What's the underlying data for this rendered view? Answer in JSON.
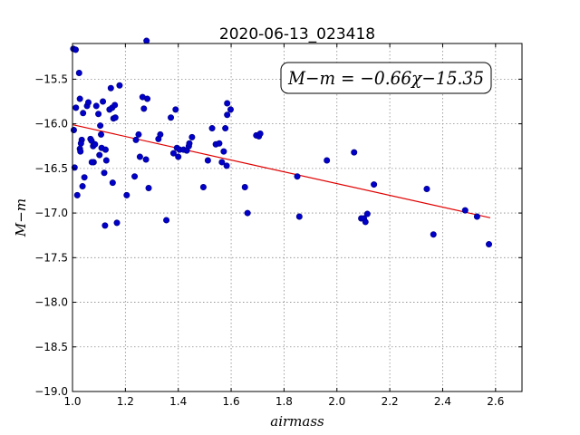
{
  "chart_data": {
    "type": "scatter",
    "title": "2020-06-13_023418",
    "xlabel": "airmass",
    "ylabel": "M−m",
    "xlim": [
      1.0,
      2.7
    ],
    "ylim": [
      -19.0,
      -15.1
    ],
    "y_inverted": true,
    "grid": true,
    "x_ticks": [
      1.0,
      1.2,
      1.4,
      1.6,
      1.8,
      2.0,
      2.2,
      2.4,
      2.6
    ],
    "x_tick_labels": [
      "1.0",
      "1.2",
      "1.4",
      "1.6",
      "1.8",
      "2.0",
      "2.2",
      "2.4",
      "2.6"
    ],
    "y_ticks": [
      -15.5,
      -16.0,
      -16.5,
      -17.0,
      -17.5,
      -18.0,
      -18.5,
      -19.0
    ],
    "y_tick_labels": [
      "−15.5",
      "−16.0",
      "−16.5",
      "−17.0",
      "−17.5",
      "−18.0",
      "−18.5",
      "−19.0"
    ],
    "annotation": "M−m = −0.66χ−15.35",
    "fit": {
      "slope": -0.66,
      "intercept": -15.35,
      "x_range": [
        1.0,
        2.58
      ],
      "color": "#e00000"
    },
    "point_color": "#0000c8",
    "points": [
      [
        1.003,
        -15.16
      ],
      [
        1.012,
        -15.17
      ],
      [
        1.025,
        -15.43
      ],
      [
        1.013,
        -15.82
      ],
      [
        1.028,
        -15.72
      ],
      [
        1.005,
        -16.07
      ],
      [
        1.008,
        -16.49
      ],
      [
        1.018,
        -16.8
      ],
      [
        1.035,
        -16.18
      ],
      [
        1.032,
        -16.22
      ],
      [
        1.028,
        -16.28
      ],
      [
        1.03,
        -16.31
      ],
      [
        1.038,
        -16.7
      ],
      [
        1.045,
        -16.6
      ],
      [
        1.04,
        -15.88
      ],
      [
        1.055,
        -15.8
      ],
      [
        1.06,
        -15.76
      ],
      [
        1.068,
        -16.17
      ],
      [
        1.072,
        -16.19
      ],
      [
        1.078,
        -16.25
      ],
      [
        1.085,
        -16.23
      ],
      [
        1.08,
        -16.43
      ],
      [
        1.073,
        -16.43
      ],
      [
        1.09,
        -15.8
      ],
      [
        1.098,
        -15.89
      ],
      [
        1.105,
        -16.02
      ],
      [
        1.108,
        -16.12
      ],
      [
        1.11,
        -16.27
      ],
      [
        1.102,
        -16.35
      ],
      [
        1.115,
        -15.75
      ],
      [
        1.12,
        -16.55
      ],
      [
        1.125,
        -16.29
      ],
      [
        1.128,
        -16.41
      ],
      [
        1.123,
        -17.14
      ],
      [
        1.14,
        -15.84
      ],
      [
        1.145,
        -15.6
      ],
      [
        1.15,
        -15.82
      ],
      [
        1.155,
        -15.94
      ],
      [
        1.16,
        -15.79
      ],
      [
        1.162,
        -15.93
      ],
      [
        1.152,
        -16.66
      ],
      [
        1.168,
        -17.11
      ],
      [
        1.178,
        -15.57
      ],
      [
        1.205,
        -16.8
      ],
      [
        1.235,
        -16.59
      ],
      [
        1.24,
        -16.18
      ],
      [
        1.25,
        -16.12
      ],
      [
        1.255,
        -16.37
      ],
      [
        1.265,
        -15.7
      ],
      [
        1.27,
        -15.83
      ],
      [
        1.278,
        -16.4
      ],
      [
        1.28,
        -15.07
      ],
      [
        1.283,
        -15.72
      ],
      [
        1.288,
        -16.72
      ],
      [
        1.325,
        -16.17
      ],
      [
        1.332,
        -16.12
      ],
      [
        1.355,
        -17.08
      ],
      [
        1.372,
        -15.93
      ],
      [
        1.382,
        -16.33
      ],
      [
        1.39,
        -15.84
      ],
      [
        1.395,
        -16.27
      ],
      [
        1.4,
        -16.37
      ],
      [
        1.405,
        -16.29
      ],
      [
        1.42,
        -16.29
      ],
      [
        1.432,
        -16.3
      ],
      [
        1.44,
        -16.25
      ],
      [
        1.442,
        -16.22
      ],
      [
        1.452,
        -16.15
      ],
      [
        1.495,
        -16.71
      ],
      [
        1.512,
        -16.41
      ],
      [
        1.528,
        -16.05
      ],
      [
        1.542,
        -16.23
      ],
      [
        1.555,
        -16.22
      ],
      [
        1.565,
        -16.43
      ],
      [
        1.572,
        -16.31
      ],
      [
        1.578,
        -16.05
      ],
      [
        1.583,
        -16.47
      ],
      [
        1.585,
        -15.77
      ],
      [
        1.585,
        -15.9
      ],
      [
        1.598,
        -15.84
      ],
      [
        1.652,
        -16.71
      ],
      [
        1.662,
        -17.0
      ],
      [
        1.695,
        -16.13
      ],
      [
        1.705,
        -16.14
      ],
      [
        1.71,
        -16.11
      ],
      [
        1.85,
        -16.59
      ],
      [
        1.858,
        -17.04
      ],
      [
        1.962,
        -16.41
      ],
      [
        2.065,
        -16.32
      ],
      [
        2.092,
        -17.06
      ],
      [
        2.102,
        -17.06
      ],
      [
        2.108,
        -17.1
      ],
      [
        2.115,
        -17.01
      ],
      [
        2.14,
        -16.68
      ],
      [
        2.34,
        -16.73
      ],
      [
        2.365,
        -17.24
      ],
      [
        2.485,
        -16.97
      ],
      [
        2.53,
        -17.04
      ],
      [
        2.575,
        -17.35
      ]
    ]
  }
}
